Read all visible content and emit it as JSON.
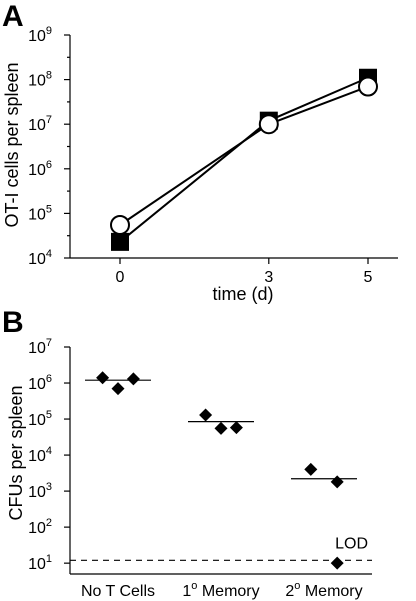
{
  "chart_data": [
    {
      "panel_letter": "A",
      "type": "line",
      "xlabel": "time (d)",
      "ylabel": "OT-I cells per spleen",
      "x": [
        0,
        3,
        5
      ],
      "x_ticks": [
        "0",
        "3",
        "5"
      ],
      "yscale": "log",
      "ylim": [
        10000,
        1000000000
      ],
      "y_ticks": [
        {
          "value": 10000,
          "base": "10",
          "exp": "4"
        },
        {
          "value": 100000,
          "base": "10",
          "exp": "5"
        },
        {
          "value": 1000000,
          "base": "10",
          "exp": "6"
        },
        {
          "value": 10000000,
          "base": "10",
          "exp": "7"
        },
        {
          "value": 100000000,
          "base": "10",
          "exp": "8"
        },
        {
          "value": 1000000000,
          "base": "10",
          "exp": "9"
        }
      ],
      "series": [
        {
          "marker": "filled-square",
          "color": "#000000",
          "values": [
            23000,
            12000000,
            110000000
          ]
        },
        {
          "marker": "open-circle",
          "color": "#000000",
          "values": [
            55000,
            10000000,
            70000000
          ]
        }
      ]
    },
    {
      "panel_letter": "B",
      "type": "scatter",
      "ylabel": "CFUs per spleen",
      "yscale": "log",
      "ylim": [
        5,
        10000000
      ],
      "categories": [
        {
          "pre": "No T Cells",
          "sup": "",
          "post": ""
        },
        {
          "pre": "1",
          "sup": "o",
          "post": " Memory"
        },
        {
          "pre": "2",
          "sup": "o",
          "post": " Memory"
        }
      ],
      "y_ticks": [
        {
          "value": 10,
          "base": "10",
          "exp": "1"
        },
        {
          "value": 100,
          "base": "10",
          "exp": "2"
        },
        {
          "value": 1000,
          "base": "10",
          "exp": "3"
        },
        {
          "value": 10000,
          "base": "10",
          "exp": "4"
        },
        {
          "value": 100000,
          "base": "10",
          "exp": "5"
        },
        {
          "value": 1000000,
          "base": "10",
          "exp": "6"
        },
        {
          "value": 10000000,
          "base": "10",
          "exp": "7"
        }
      ],
      "groups": [
        {
          "points": [
            {
              "offset": -0.35,
              "y": 1400000
            },
            {
              "offset": 0,
              "y": 700000
            },
            {
              "offset": 0.35,
              "y": 1300000
            }
          ],
          "mean": 1200000
        },
        {
          "points": [
            {
              "offset": -0.35,
              "y": 130000
            },
            {
              "offset": 0,
              "y": 55000
            },
            {
              "offset": 0.35,
              "y": 58000
            }
          ],
          "mean": 85000
        },
        {
          "points": [
            {
              "offset": -0.3,
              "y": 4000
            },
            {
              "offset": 0.3,
              "y": 1800
            },
            {
              "offset": 0.3,
              "y": 10
            }
          ],
          "mean": 2200
        }
      ],
      "lod": {
        "label": "LOD",
        "value": 12
      }
    }
  ]
}
